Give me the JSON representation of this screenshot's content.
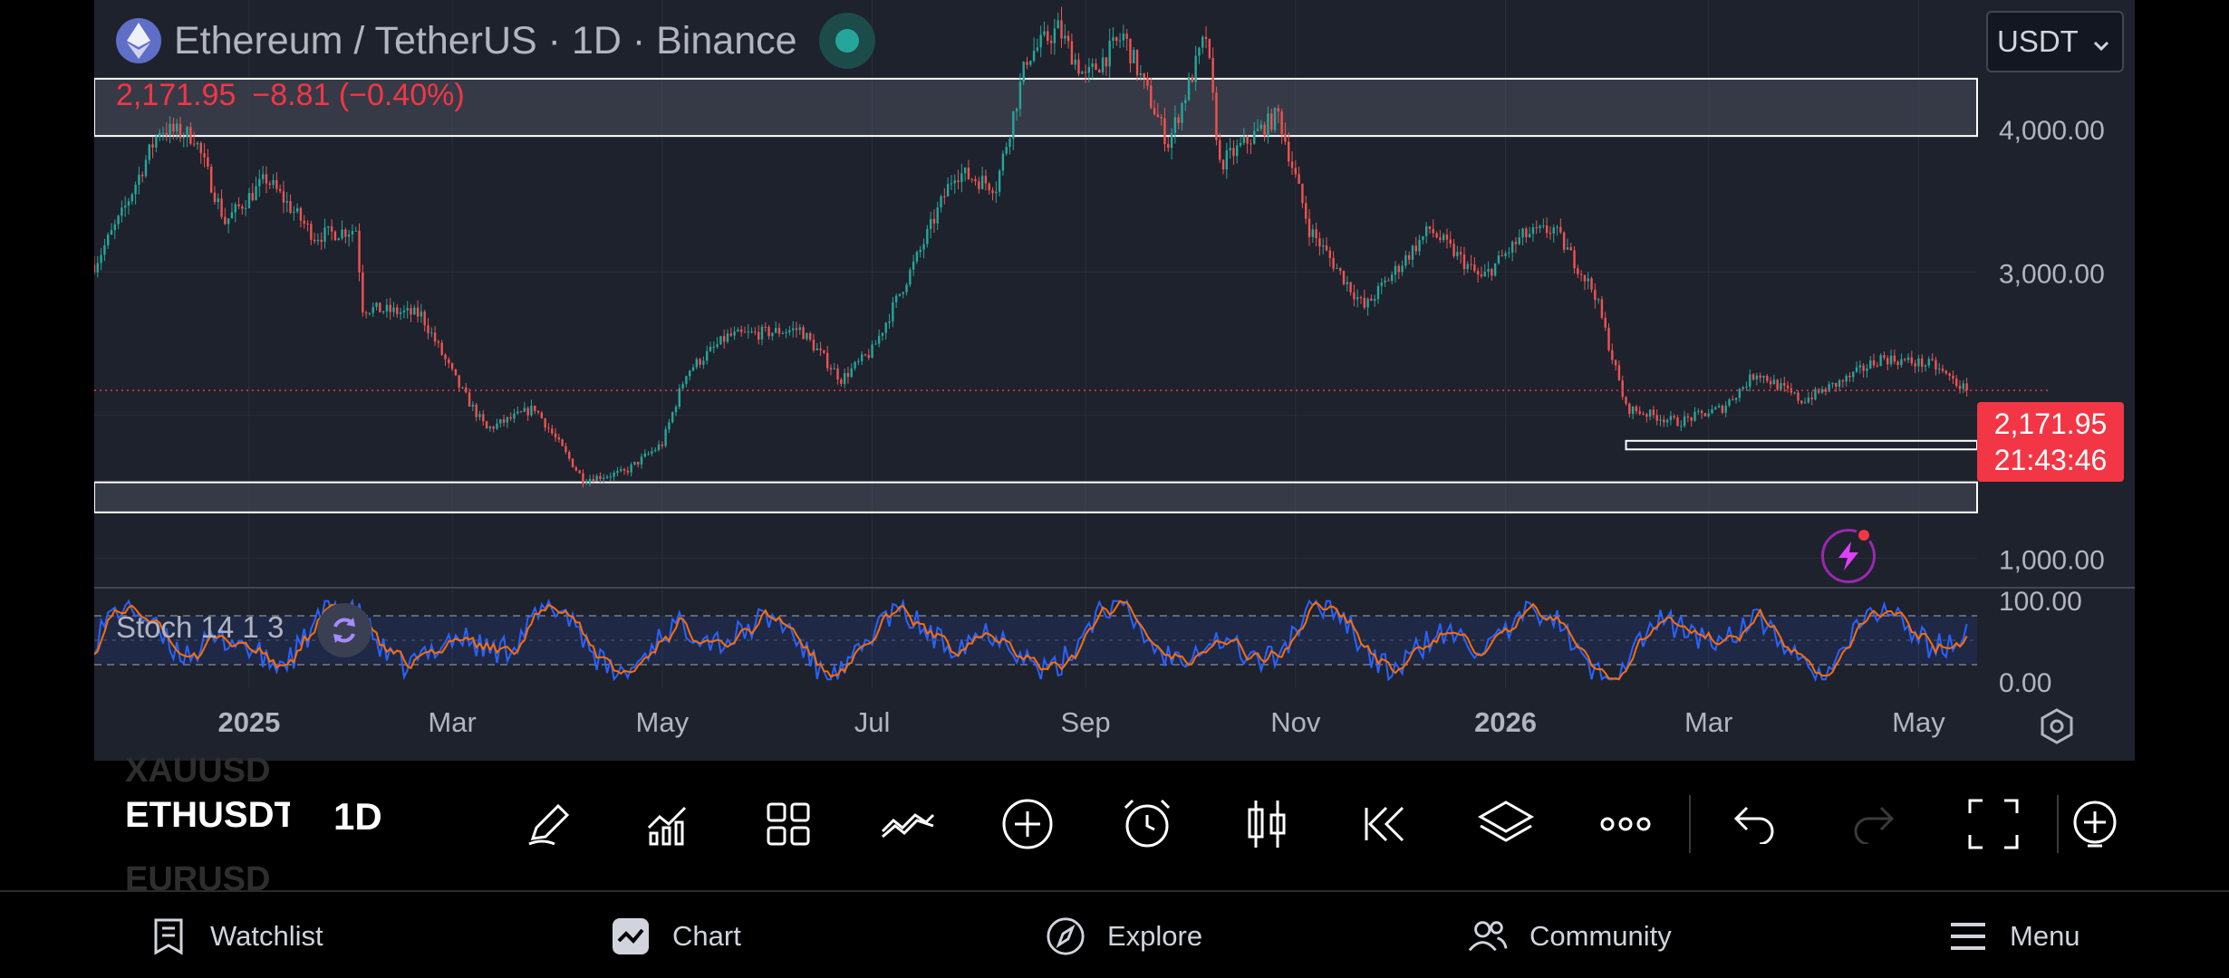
{
  "header": {
    "title": "Ethereum / TetherUS · 1D · Binance",
    "price": "2,171.95",
    "change": "−8.81 (−0.40%)"
  },
  "currency": {
    "selected": "USDT"
  },
  "price_label": {
    "price": "2,171.95",
    "countdown": "21:43:46"
  },
  "indicator": {
    "label": "Stoch 14 1 3"
  },
  "chart_data": {
    "type": "candlestick",
    "symbol": "ETHUSDT",
    "y_ticks": [
      "4,000.00",
      "3,000.00",
      "1,000.00"
    ],
    "y_tick_values": [
      4000,
      3000,
      1000
    ],
    "x_ticks": [
      "2025",
      "Mar",
      "May",
      "Jul",
      "Sep",
      "Nov",
      "2026",
      "Mar",
      "May"
    ],
    "x_tick_dates": [
      "2025-01-01",
      "2025-03-01",
      "2025-05-01",
      "2025-07-01",
      "2025-09-01",
      "2025-11-01",
      "2026-01-01",
      "2026-03-01",
      "2026-05-01"
    ],
    "x_range": [
      "2024-11-17",
      "2026-05-18"
    ],
    "ylim": [
      800,
      4900
    ],
    "close_path": [
      [
        "2024-11-17",
        3050
      ],
      [
        "2024-11-25",
        3400
      ],
      [
        "2024-12-06",
        4000
      ],
      [
        "2024-12-16",
        3950
      ],
      [
        "2024-12-25",
        3350
      ],
      [
        "2025-01-06",
        3650
      ],
      [
        "2025-01-20",
        3250
      ],
      [
        "2025-02-01",
        3300
      ],
      [
        "2025-02-03",
        2750
      ],
      [
        "2025-02-20",
        2700
      ],
      [
        "2025-03-03",
        2200
      ],
      [
        "2025-03-11",
        1900
      ],
      [
        "2025-03-25",
        2050
      ],
      [
        "2025-04-08",
        1550
      ],
      [
        "2025-04-20",
        1600
      ],
      [
        "2025-05-01",
        1800
      ],
      [
        "2025-05-08",
        2300
      ],
      [
        "2025-05-20",
        2550
      ],
      [
        "2025-06-10",
        2600
      ],
      [
        "2025-06-22",
        2250
      ],
      [
        "2025-07-01",
        2450
      ],
      [
        "2025-07-15",
        3150
      ],
      [
        "2025-07-25",
        3700
      ],
      [
        "2025-08-06",
        3600
      ],
      [
        "2025-08-15",
        4500
      ],
      [
        "2025-08-24",
        4700
      ],
      [
        "2025-09-01",
        4350
      ],
      [
        "2025-09-12",
        4650
      ],
      [
        "2025-09-25",
        3900
      ],
      [
        "2025-10-06",
        4650
      ],
      [
        "2025-10-10",
        3750
      ],
      [
        "2025-10-27",
        4100
      ],
      [
        "2025-11-05",
        3300
      ],
      [
        "2025-11-21",
        2750
      ],
      [
        "2025-12-10",
        3300
      ],
      [
        "2025-12-25",
        2950
      ],
      [
        "2026-01-06",
        3250
      ],
      [
        "2026-01-15",
        3300
      ],
      [
        "2026-01-27",
        2850
      ],
      [
        "2026-02-05",
        2050
      ],
      [
        "2026-02-20",
        1950
      ],
      [
        "2026-03-05",
        2050
      ],
      [
        "2026-03-15",
        2300
      ],
      [
        "2026-03-28",
        2100
      ],
      [
        "2026-04-10",
        2250
      ],
      [
        "2026-04-20",
        2400
      ],
      [
        "2026-05-05",
        2350
      ],
      [
        "2026-05-15",
        2171.95
      ]
    ],
    "last_price": 2171.95,
    "zones": [
      {
        "from": 3950,
        "to": 4350
      },
      {
        "from": 1320,
        "to": 1530
      }
    ],
    "support_box": {
      "from_date": "2026-02-05",
      "from": 1760,
      "to": 1820
    },
    "stochastic": {
      "params": "14 1 3",
      "levels": [
        80,
        20
      ],
      "y_ticks": [
        "100.00",
        "0.00"
      ],
      "k_color": "#2962ff",
      "d_color": "#ff6d00"
    },
    "colors": {
      "up": "#26a69a",
      "down": "#ef5350"
    }
  },
  "symbols": {
    "prev": "XAUUSD",
    "active": "ETHUSDT",
    "next": "EURUSD"
  },
  "timeframe": "1D",
  "toolbar": [
    {
      "icon": "pencil-icon"
    },
    {
      "icon": "indicators-icon"
    },
    {
      "icon": "grid-icon"
    },
    {
      "icon": "strategy-icon"
    },
    {
      "icon": "plus-circle-icon"
    },
    {
      "icon": "alarm-icon"
    },
    {
      "icon": "candle-type-icon"
    },
    {
      "icon": "replay-icon"
    },
    {
      "icon": "layers-icon"
    },
    {
      "icon": "more-icon"
    },
    {
      "icon": "undo-icon"
    },
    {
      "icon": "redo-icon"
    },
    {
      "icon": "fullscreen-icon"
    },
    {
      "icon": "add-alert-icon"
    }
  ],
  "nav": {
    "watchlist": "Watchlist",
    "chart": "Chart",
    "explore": "Explore",
    "community": "Community",
    "menu": "Menu"
  }
}
